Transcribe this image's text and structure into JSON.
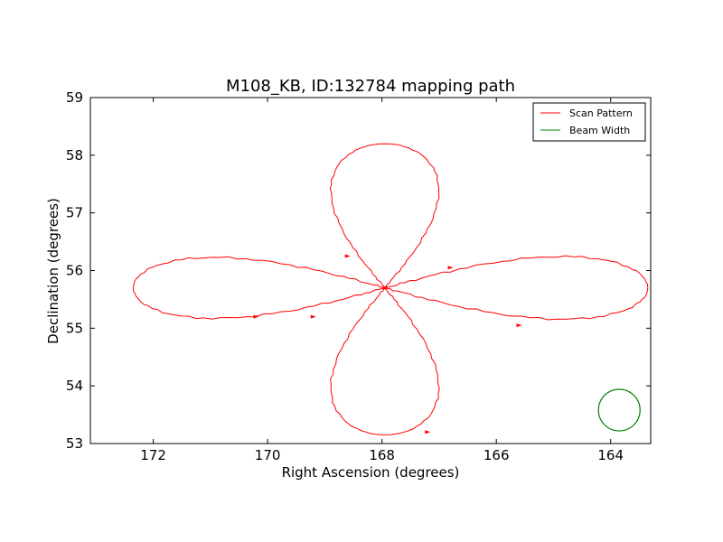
{
  "chart_data": {
    "type": "line",
    "title": "M108_KB, ID:132784 mapping path",
    "xlabel": "Right Ascension (degrees)",
    "ylabel": "Declination (degrees)",
    "xlim": [
      173.1,
      163.3
    ],
    "ylim": [
      53,
      59
    ],
    "x_ticks": [
      172,
      170,
      168,
      166,
      164
    ],
    "y_ticks": [
      53,
      54,
      55,
      56,
      57,
      58,
      59
    ],
    "grid": false,
    "legend": {
      "position": "top-right",
      "entries": [
        {
          "label": "Scan Pattern",
          "color": "#ff0000",
          "kind": "line"
        },
        {
          "label": "Beam Width",
          "color": "#008000",
          "kind": "line"
        }
      ]
    },
    "series": [
      {
        "name": "Scan Pattern",
        "color": "#ff0000",
        "center": [
          167.95,
          55.7
        ],
        "lobes": [
          {
            "direction": "north",
            "extent": [
              167.95,
              58.2
            ],
            "half_width_deg": 1.25
          },
          {
            "direction": "east",
            "extent": [
              163.35,
              55.7
            ],
            "half_width_deg": 0.72
          },
          {
            "direction": "south",
            "extent": [
              167.95,
              53.15
            ],
            "half_width_deg": 1.25
          },
          {
            "direction": "west",
            "extent": [
              172.35,
              55.7
            ],
            "half_width_deg": 0.7
          }
        ],
        "path_start": [
          171.8,
          56.22
        ]
      },
      {
        "name": "Beam Width",
        "color": "#008000",
        "type": "circle",
        "center": [
          163.85,
          53.58
        ],
        "radius_deg": 0.36
      }
    ]
  }
}
